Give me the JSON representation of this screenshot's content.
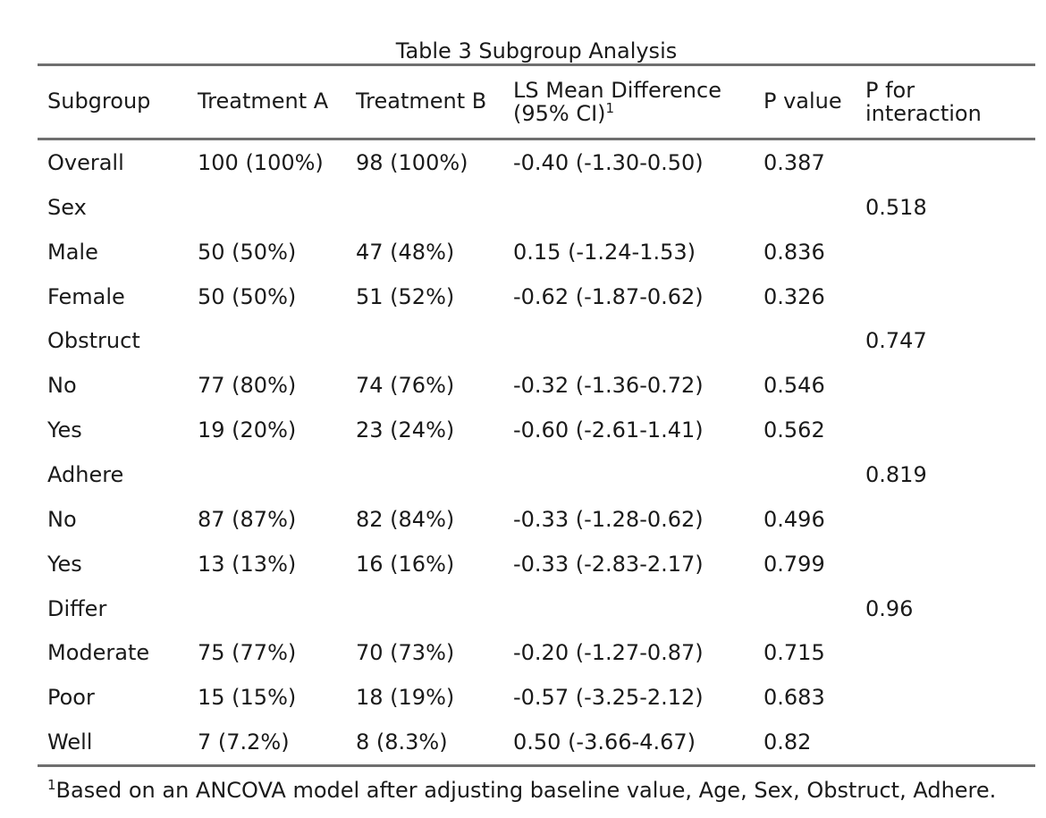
{
  "caption": "Table 3 Subgroup Analysis",
  "headers": {
    "subgroup": "Subgroup",
    "treatment_a": "Treatment A",
    "treatment_b": "Treatment B",
    "ls_mean_line1": "LS Mean Difference",
    "ls_mean_line2": "(95% CI)",
    "ls_mean_sup": "1",
    "p_value": "P value",
    "p_interaction_line1": "P for",
    "p_interaction_line2": "interaction"
  },
  "rows": [
    {
      "subgroup": "Overall",
      "a": "100 (100%)",
      "b": "98 (100%)",
      "diff": "-0.40 (-1.30-0.50)",
      "p": "0.387",
      "p_int": ""
    },
    {
      "subgroup": "Sex",
      "a": "",
      "b": "",
      "diff": "",
      "p": "",
      "p_int": "0.518"
    },
    {
      "subgroup": "Male",
      "a": "50 (50%)",
      "b": "47 (48%)",
      "diff": "0.15 (-1.24-1.53)",
      "p": "0.836",
      "p_int": ""
    },
    {
      "subgroup": "Female",
      "a": "50 (50%)",
      "b": "51 (52%)",
      "diff": "-0.62 (-1.87-0.62)",
      "p": "0.326",
      "p_int": ""
    },
    {
      "subgroup": "Obstruct",
      "a": "",
      "b": "",
      "diff": "",
      "p": "",
      "p_int": "0.747"
    },
    {
      "subgroup": "No",
      "a": "77 (80%)",
      "b": "74 (76%)",
      "diff": "-0.32 (-1.36-0.72)",
      "p": "0.546",
      "p_int": ""
    },
    {
      "subgroup": "Yes",
      "a": "19 (20%)",
      "b": "23 (24%)",
      "diff": "-0.60 (-2.61-1.41)",
      "p": "0.562",
      "p_int": ""
    },
    {
      "subgroup": "Adhere",
      "a": "",
      "b": "",
      "diff": "",
      "p": "",
      "p_int": "0.819"
    },
    {
      "subgroup": "No",
      "a": "87 (87%)",
      "b": "82 (84%)",
      "diff": "-0.33 (-1.28-0.62)",
      "p": "0.496",
      "p_int": ""
    },
    {
      "subgroup": "Yes",
      "a": "13 (13%)",
      "b": "16 (16%)",
      "diff": "-0.33 (-2.83-2.17)",
      "p": "0.799",
      "p_int": ""
    },
    {
      "subgroup": "Differ",
      "a": "",
      "b": "",
      "diff": "",
      "p": "",
      "p_int": "0.96"
    },
    {
      "subgroup": "Moderate",
      "a": "75 (77%)",
      "b": "70 (73%)",
      "diff": "-0.20 (-1.27-0.87)",
      "p": "0.715",
      "p_int": ""
    },
    {
      "subgroup": "Poor",
      "a": "15 (15%)",
      "b": "18 (19%)",
      "diff": "-0.57 (-3.25-2.12)",
      "p": "0.683",
      "p_int": ""
    },
    {
      "subgroup": "Well",
      "a": "7 (7.2%)",
      "b": "8 (8.3%)",
      "diff": "0.50 (-3.66-4.67)",
      "p": "0.82",
      "p_int": ""
    }
  ],
  "footnote": {
    "sup": "1",
    "text": "Based on an ANCOVA model after adjusting baseline value, Age, Sex, Obstruct, Adhere."
  }
}
